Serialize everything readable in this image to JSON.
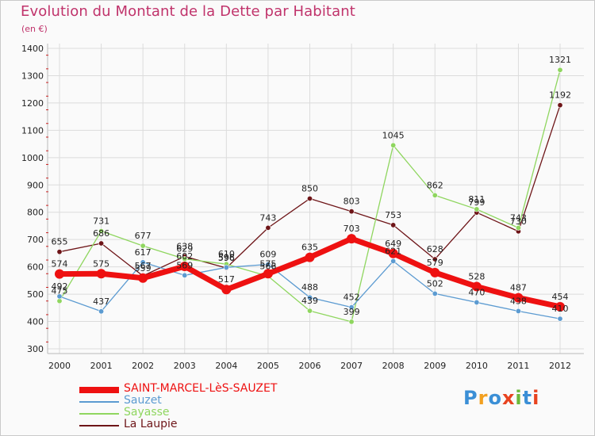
{
  "page": {
    "title": "Evolution du Montant de la Dette par Habitant",
    "subtitle": "(en €)",
    "brand": [
      "P",
      "r",
      "o",
      "x",
      "i",
      "t",
      "i"
    ],
    "brand_colors": [
      "#3b8fd6",
      "#f2a020",
      "#3b8fd6",
      "#e8431f",
      "#6cb93a",
      "#3b8fd6",
      "#e8431f"
    ]
  },
  "chart_data": {
    "type": "line",
    "title": "Evolution du Montant de la Dette par Habitant",
    "ylabel": "(en €)",
    "xlabel": "",
    "ylim": [
      300,
      1400
    ],
    "yticks": [
      "300",
      "400",
      "500",
      "600",
      "700",
      "800",
      "900",
      "1000",
      "1100",
      "1200",
      "1300",
      "1400"
    ],
    "categories": [
      "2000",
      "2001",
      "2002",
      "2003",
      "2004",
      "2005",
      "2006",
      "2007",
      "2008",
      "2009",
      "2010",
      "2011",
      "2012"
    ],
    "series": [
      {
        "name": "La Laupie",
        "color": "#6e1518",
        "width": 1.3,
        "markers": true,
        "values": [
          655,
          686,
          567,
          638,
          596,
          743,
          850,
          803,
          753,
          628,
          799,
          730,
          1192
        ]
      },
      {
        "name": "Sayasse",
        "color": "#8fd65f",
        "width": 1.3,
        "markers": true,
        "values": [
          475,
          731,
          677,
          629,
          610,
          566,
          439,
          399,
          1045,
          862,
          811,
          743,
          1321
        ]
      },
      {
        "name": "Sauzet",
        "color": "#5c9bd1",
        "width": 1.3,
        "markers": true,
        "values": [
          492,
          437,
          617,
          569,
          598,
          609,
          488,
          452,
          621,
          502,
          470,
          438,
          410
        ]
      },
      {
        "name": "SAINT-MARCEL-LèS-SAUZET",
        "color": "#ee1111",
        "width": 7,
        "markers": true,
        "values": [
          574,
          575,
          559,
          602,
          517,
          575,
          635,
          703,
          649,
          579,
          528,
          487,
          454
        ]
      }
    ],
    "legend_order": [
      "SAINT-MARCEL-LèS-SAUZET",
      "Sauzet",
      "Sayasse",
      "La Laupie"
    ],
    "grid": true,
    "legend": "bottom-left"
  }
}
